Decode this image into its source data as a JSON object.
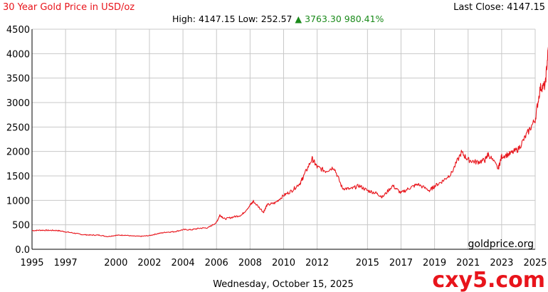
{
  "header": {
    "title": "30 Year Gold Price in USD/oz",
    "high_label": "High:",
    "high_value": "4147.15",
    "low_label": "Low:",
    "low_value": "252.57",
    "change_arrow": "▲",
    "change_value": "3763.30",
    "change_pct": "980.41%",
    "last_close_label": "Last Close:",
    "last_close_value": "4147.15"
  },
  "footer": {
    "date": "Wednesday, October 15, 2025",
    "source": "goldprice.org",
    "watermark": "cxy5.com"
  },
  "colors": {
    "line": "#e8141b",
    "title": "#e8141b",
    "up": "#1a8a1a",
    "grid": "#c8c8c8"
  },
  "chart_data": {
    "type": "line",
    "title": "30 Year Gold Price in USD/oz",
    "xlabel": "",
    "ylabel": "",
    "grid": true,
    "xlim": [
      1995,
      2025
    ],
    "ylim": [
      0,
      4500
    ],
    "x_ticks": [
      "1995",
      "1997",
      "2000",
      "2002",
      "2004",
      "2006",
      "2008",
      "2010",
      "2012",
      "2015",
      "2017",
      "2019",
      "2021",
      "2023",
      "2025"
    ],
    "y_ticks": [
      "0.0",
      "500",
      "1000",
      "1500",
      "2000",
      "2500",
      "3000",
      "3500",
      "4000",
      "4500"
    ],
    "series": [
      {
        "x": [
          1995.0,
          1995.5,
          1996.0,
          1996.5,
          1997.0,
          1997.5,
          1998.0,
          1998.5,
          1999.0,
          1999.5,
          2000.0,
          2000.5,
          2001.0,
          2001.5,
          2002.0,
          2002.5,
          2003.0,
          2003.5,
          2004.0,
          2004.5,
          2005.0,
          2005.5,
          2006.0,
          2006.2,
          2006.5,
          2007.0,
          2007.5,
          2008.0,
          2008.2,
          2008.8,
          2009.0,
          2009.5,
          2010.0,
          2010.5,
          2011.0,
          2011.2,
          2011.7,
          2012.0,
          2012.5,
          2013.0,
          2013.5,
          2014.0,
          2014.5,
          2015.0,
          2015.5,
          2015.9,
          2016.5,
          2017.0,
          2017.5,
          2018.0,
          2018.7,
          2019.0,
          2019.5,
          2020.0,
          2020.6,
          2021.0,
          2021.5,
          2022.0,
          2022.2,
          2022.8,
          2023.0,
          2023.5,
          2024.0,
          2024.5,
          2025.0,
          2025.3,
          2025.6,
          2025.79
        ],
        "y": [
          382,
          390,
          387,
          385,
          357,
          331,
          300,
          290,
          290,
          260,
          285,
          290,
          270,
          265,
          280,
          320,
          350,
          360,
          400,
          400,
          430,
          440,
          550,
          700,
          620,
          660,
          700,
          900,
          980,
          760,
          900,
          950,
          1100,
          1200,
          1360,
          1500,
          1850,
          1680,
          1600,
          1680,
          1250,
          1230,
          1300,
          1200,
          1150,
          1070,
          1300,
          1150,
          1250,
          1330,
          1200,
          1290,
          1400,
          1550,
          1980,
          1830,
          1780,
          1820,
          1950,
          1650,
          1900,
          1950,
          2050,
          2350,
          2650,
          3300,
          3350,
          4147
        ]
      }
    ]
  }
}
